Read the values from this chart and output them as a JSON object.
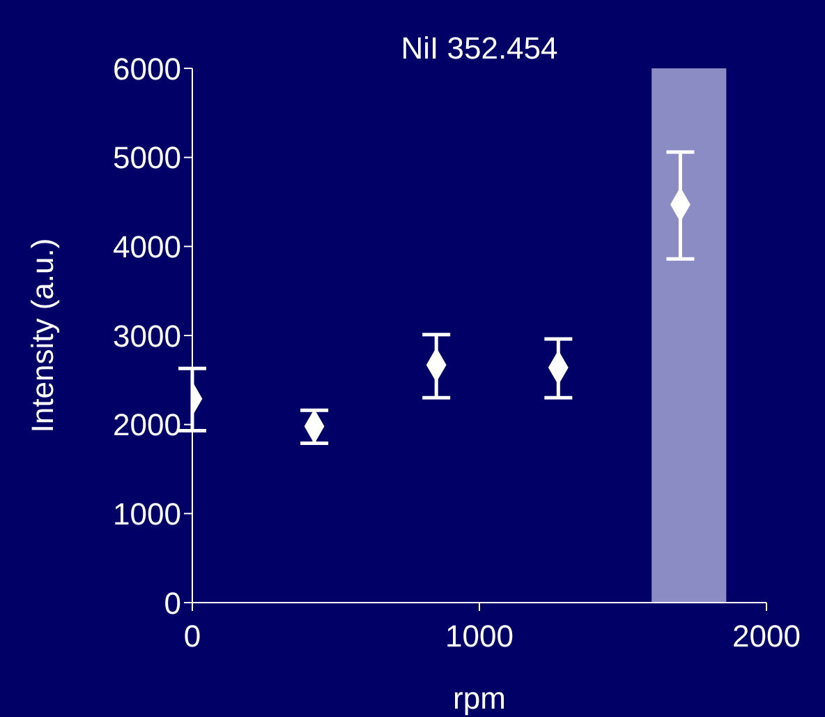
{
  "chart_data": {
    "type": "scatter",
    "title": "NiI 352.454",
    "xlabel": "rpm",
    "ylabel": "Intensity   (a.u.)",
    "x": [
      0,
      425,
      850,
      1275,
      1700
    ],
    "values": [
      2290,
      1980,
      2670,
      2640,
      4470
    ],
    "errors": [
      [
        1930,
        2630
      ],
      [
        1790,
        2160
      ],
      [
        2300,
        3010
      ],
      [
        2300,
        2960
      ],
      [
        3860,
        5060
      ]
    ],
    "color": "#ffffff",
    "marker": "diamond",
    "xlim": [
      0,
      2000
    ],
    "xticks": [
      0,
      1000,
      2000
    ],
    "ylim": [
      0,
      6000
    ],
    "yticks": [
      0,
      1000,
      2000,
      3000,
      4000,
      5000,
      6000
    ],
    "bands": [
      {
        "axis": "x",
        "from": 1600,
        "to": 1860,
        "color": "#8c8cc4"
      }
    ],
    "grid": false,
    "legend": false
  }
}
